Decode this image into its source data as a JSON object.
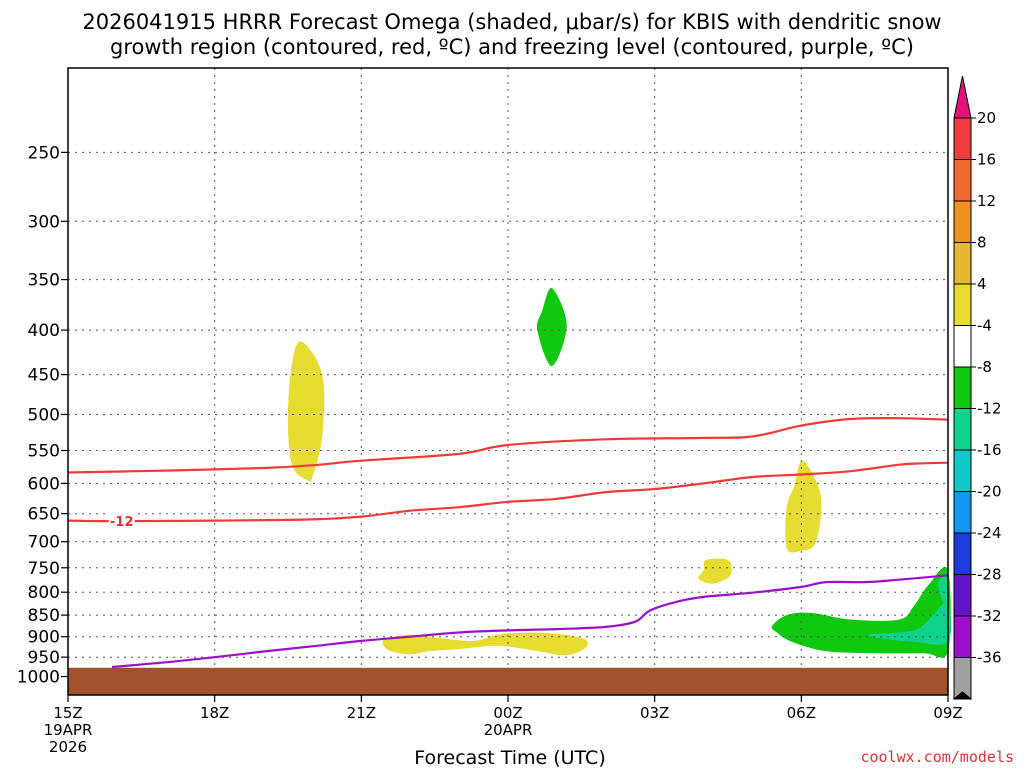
{
  "chart_data": {
    "type": "time-height",
    "title_line1": "2026041915 HRRR Forecast Omega (shaded, μbar/s) for KBIS with dendritic snow",
    "title_line2": "growth region (contoured, red, ºC) and freezing level (contoured, purple, ºC)",
    "xlabel": "Forecast Time (UTC)",
    "ylabel": "",
    "credit": "coolwx.com/models",
    "x_unit": "hours since 15Z 19APR 2026",
    "xlim": [
      0,
      18
    ],
    "ylim_hpa": [
      200,
      1050
    ],
    "x_ticks": [
      {
        "x": 0,
        "lines": [
          "15Z",
          "19APR",
          "2026"
        ]
      },
      {
        "x": 3,
        "lines": [
          "18Z"
        ]
      },
      {
        "x": 6,
        "lines": [
          "21Z"
        ]
      },
      {
        "x": 9,
        "lines": [
          "00Z",
          "20APR"
        ]
      },
      {
        "x": 12,
        "lines": [
          "03Z"
        ]
      },
      {
        "x": 15,
        "lines": [
          "06Z"
        ]
      },
      {
        "x": 18,
        "lines": [
          "09Z"
        ]
      }
    ],
    "y_ticks": [
      250,
      300,
      350,
      400,
      450,
      500,
      550,
      600,
      650,
      700,
      750,
      800,
      850,
      900,
      950,
      1000
    ],
    "colorbar": {
      "ticks": [
        "20",
        "16",
        "12",
        "8",
        "4",
        "-4",
        "-8",
        "-12",
        "-16",
        "-20",
        "-24",
        "-28",
        "-32",
        "-36"
      ],
      "bands": [
        "#f03c3c",
        "#f06a30",
        "#f09020",
        "#e8b830",
        "#e8dc30",
        "#ffffff",
        "#10c810",
        "#10d28c",
        "#10c8c8",
        "#1496f0",
        "#1e3cdc",
        "#6414c8",
        "#9b10c8",
        "#a0a0a0"
      ],
      "top_arrow_color": "#e01478",
      "bottom_arrow_color": "#000000"
    },
    "contours": [
      {
        "name": "-12C isotherm (upper dendritic boundary)",
        "color": "#f03a3a",
        "points": [
          [
            0,
            583
          ],
          [
            2,
            580
          ],
          [
            4,
            576
          ],
          [
            5,
            572
          ],
          [
            6,
            565
          ],
          [
            8,
            555
          ],
          [
            9,
            542
          ],
          [
            11,
            534
          ],
          [
            13,
            532
          ],
          [
            14,
            530
          ],
          [
            15,
            515
          ],
          [
            16,
            506
          ],
          [
            17,
            505
          ],
          [
            18,
            507
          ]
        ]
      },
      {
        "name": "-12C isotherm (lower dendritic boundary)",
        "label": "-12",
        "label_x": 1.1,
        "color": "#f03a3a",
        "points": [
          [
            0,
            662
          ],
          [
            1,
            663
          ],
          [
            3,
            662
          ],
          [
            5,
            660
          ],
          [
            6,
            655
          ],
          [
            7,
            645
          ],
          [
            8,
            639
          ],
          [
            9,
            630
          ],
          [
            10,
            625
          ],
          [
            11,
            614
          ],
          [
            12,
            609
          ],
          [
            13,
            600
          ],
          [
            14,
            590
          ],
          [
            15,
            586
          ],
          [
            16,
            581
          ],
          [
            17,
            571
          ],
          [
            17.5,
            569
          ],
          [
            18,
            568
          ]
        ]
      },
      {
        "name": "freezing level",
        "color": "#9b10c8",
        "points": [
          [
            0.9,
            975
          ],
          [
            2,
            963
          ],
          [
            3,
            950
          ],
          [
            4,
            936
          ],
          [
            5,
            923
          ],
          [
            6,
            910
          ],
          [
            7,
            900
          ],
          [
            8,
            890
          ],
          [
            9,
            885
          ],
          [
            10,
            882
          ],
          [
            11,
            877
          ],
          [
            11.6,
            865
          ],
          [
            11.9,
            840
          ],
          [
            12.4,
            822
          ],
          [
            13,
            810
          ],
          [
            14,
            801
          ],
          [
            15,
            789
          ],
          [
            15.5,
            779
          ],
          [
            16.3,
            779
          ],
          [
            17,
            774
          ],
          [
            18,
            765
          ]
        ]
      }
    ],
    "omega_regions": [
      {
        "name": "yellow-upward-1",
        "value_range": [
          4,
          8
        ],
        "color": "#e6dc32",
        "points": [
          [
            4.75,
            412
          ],
          [
            5.2,
            450
          ],
          [
            5.2,
            530
          ],
          [
            5.0,
            590
          ],
          [
            4.9,
            595
          ],
          [
            4.6,
            575
          ],
          [
            4.5,
            520
          ],
          [
            4.55,
            450
          ]
        ]
      },
      {
        "name": "green-downward-1",
        "value_range": [
          -8,
          -4
        ],
        "color": "#10c810",
        "points": [
          [
            9.9,
            358
          ],
          [
            10.2,
            395
          ],
          [
            9.9,
            440
          ],
          [
            9.6,
            400
          ],
          [
            9.7,
            380
          ]
        ]
      },
      {
        "name": "yellow-upward-2",
        "value_range": [
          4,
          8
        ],
        "color": "#e6dc32",
        "points": [
          [
            15.03,
            565
          ],
          [
            15.4,
            620
          ],
          [
            15.3,
            700
          ],
          [
            15.0,
            717
          ],
          [
            14.7,
            712
          ],
          [
            14.7,
            640
          ],
          [
            14.85,
            605
          ]
        ]
      },
      {
        "name": "yellow-upward-3",
        "value_range": [
          4,
          8
        ],
        "color": "#e6dc32",
        "points": [
          [
            13.05,
            735
          ],
          [
            13.5,
            735
          ],
          [
            13.55,
            765
          ],
          [
            13.2,
            782
          ],
          [
            12.9,
            772
          ],
          [
            13.0,
            755
          ]
        ]
      },
      {
        "name": "yellow-upward-4",
        "value_range": [
          4,
          8
        ],
        "color": "#e6dc32",
        "points": [
          [
            6.5,
            905
          ],
          [
            7.0,
            895
          ],
          [
            7.6,
            903
          ],
          [
            8.3,
            910
          ],
          [
            8.8,
            895
          ],
          [
            9.4,
            890
          ],
          [
            10.0,
            893
          ],
          [
            10.55,
            905
          ],
          [
            10.6,
            925
          ],
          [
            10.2,
            945
          ],
          [
            9.6,
            935
          ],
          [
            8.8,
            922
          ],
          [
            8.0,
            930
          ],
          [
            7.4,
            935
          ],
          [
            7.0,
            943
          ],
          [
            6.6,
            935
          ],
          [
            6.45,
            920
          ]
        ]
      },
      {
        "name": "green-downward-lowlevel",
        "value_range": [
          -8,
          -4
        ],
        "color": "#10c810",
        "points": [
          [
            14.4,
            875
          ],
          [
            14.7,
            850
          ],
          [
            15.2,
            845
          ],
          [
            16.0,
            860
          ],
          [
            17.0,
            860
          ],
          [
            17.3,
            830
          ],
          [
            17.6,
            785
          ],
          [
            18.0,
            755
          ],
          [
            18.0,
            935
          ],
          [
            17.5,
            940
          ],
          [
            16.5,
            940
          ],
          [
            15.5,
            935
          ],
          [
            14.8,
            912
          ],
          [
            14.5,
            890
          ]
        ]
      },
      {
        "name": "teal-downward-lowlevel",
        "value_range": [
          -12,
          -8
        ],
        "color": "#10d28c",
        "points": [
          [
            16.4,
            895
          ],
          [
            17.3,
            885
          ],
          [
            17.7,
            850
          ],
          [
            18.0,
            820
          ],
          [
            18.0,
            912
          ],
          [
            17.3,
            912
          ],
          [
            16.7,
            905
          ]
        ]
      },
      {
        "name": "teal-downward-edge",
        "value_range": [
          -12,
          -8
        ],
        "color": "#10d28c",
        "points": [
          [
            17.8,
            780
          ],
          [
            18.0,
            770
          ],
          [
            18.0,
            830
          ],
          [
            17.9,
            820
          ]
        ]
      }
    ],
    "terrain": {
      "color": "#a0522d",
      "surface_hpa": 977
    }
  }
}
